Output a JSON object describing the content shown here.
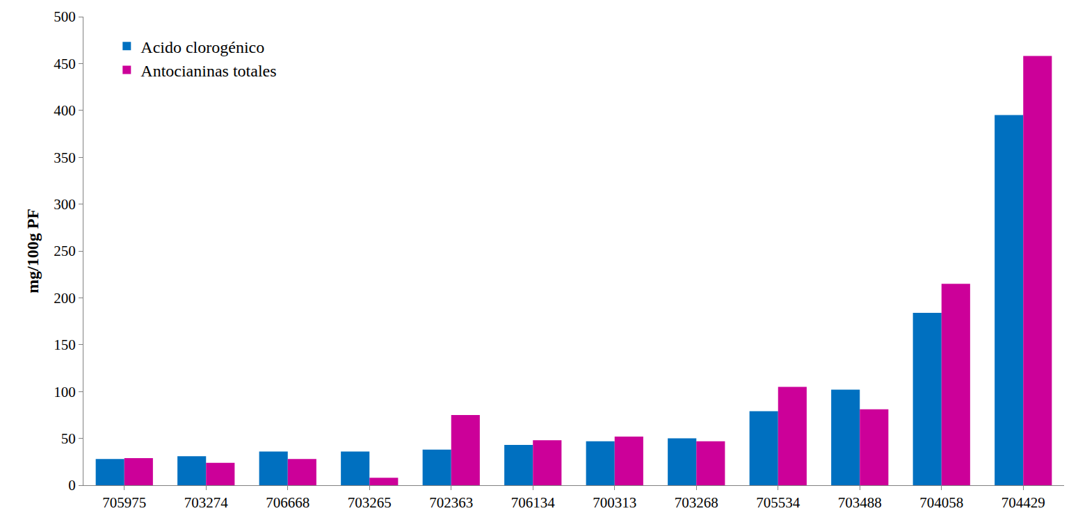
{
  "chart_data": {
    "type": "bar",
    "y_label": "mg/100g PF",
    "categories": [
      "705975",
      "703274",
      "706668",
      "703265",
      "702363",
      "706134",
      "700313",
      "703268",
      "705534",
      "703488",
      "704058",
      "704429"
    ],
    "series": [
      {
        "name": "Acido clorogénico",
        "color": "#0070c0",
        "values": [
          28,
          31,
          36,
          36,
          38,
          43,
          47,
          50,
          79,
          102,
          184,
          395
        ]
      },
      {
        "name": "Antocianinas totales",
        "color": "#cc0099",
        "values": [
          29,
          24,
          28,
          8,
          75,
          48,
          52,
          47,
          105,
          81,
          215,
          458
        ]
      }
    ],
    "ylim": [
      0,
      500
    ],
    "yticks": [
      0,
      50,
      100,
      150,
      200,
      250,
      300,
      350,
      400,
      450,
      500
    ],
    "grid": false,
    "legend": "top left"
  }
}
